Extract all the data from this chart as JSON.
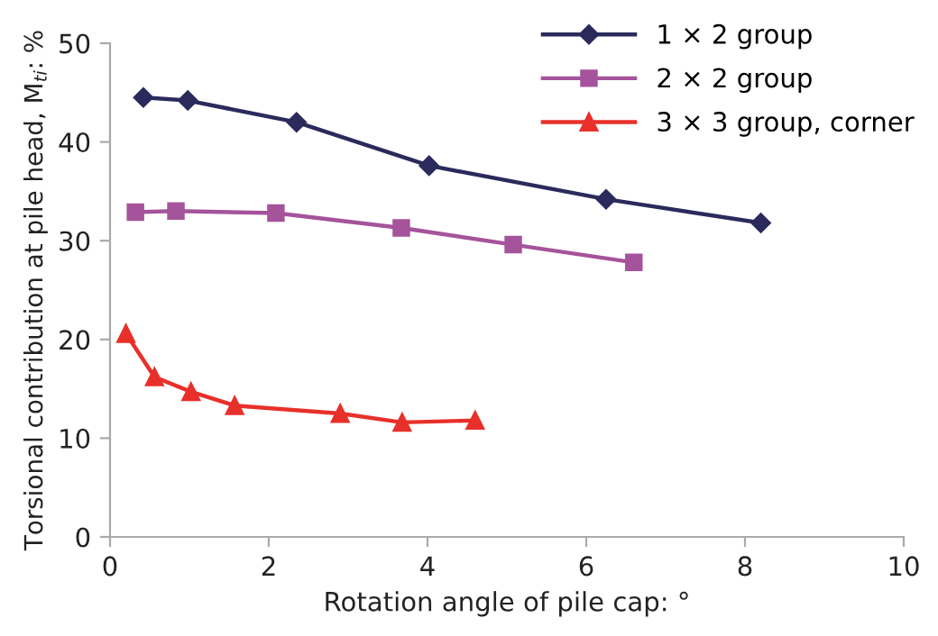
{
  "chart_data": {
    "type": "line",
    "xlabel": "Rotation angle of pile cap: °",
    "ylabel": "Torsional contribution at pile head, M$_{ti}$: %",
    "xlim": [
      0,
      10
    ],
    "xticks": [
      0,
      2,
      4,
      6,
      8,
      10
    ],
    "ylim": [
      0,
      50
    ],
    "yticks": [
      0,
      10,
      20,
      30,
      40,
      50
    ],
    "grid": false,
    "legend": "top right",
    "line_style": "solid",
    "series": [
      {
        "name": "1 × 2 group",
        "color": "#2b2a5c",
        "marker": "diamond",
        "x": [
          0.42,
          0.98,
          2.35,
          4.02,
          6.25,
          8.2
        ],
        "values": [
          44.5,
          44.2,
          42.0,
          37.6,
          34.2,
          31.8
        ]
      },
      {
        "name": "2 × 2 group",
        "color": "#a5539b",
        "marker": "square",
        "x": [
          0.32,
          0.83,
          2.09,
          3.67,
          5.08,
          6.6
        ],
        "values": [
          32.9,
          33.0,
          32.8,
          31.3,
          29.6,
          27.8
        ]
      },
      {
        "name": "3 × 3 group, corner",
        "color": "#e8302a",
        "marker": "triangle",
        "x": [
          0.2,
          0.56,
          1.02,
          1.57,
          2.9,
          3.68,
          4.6
        ],
        "values": [
          20.6,
          16.2,
          14.7,
          13.3,
          12.5,
          11.6,
          11.8
        ]
      }
    ]
  }
}
